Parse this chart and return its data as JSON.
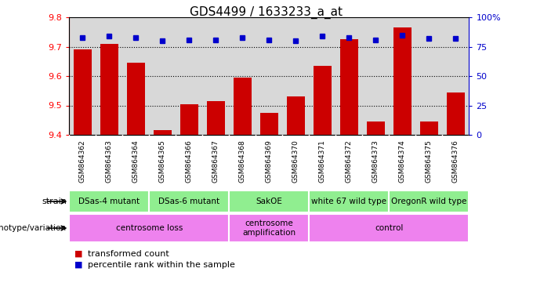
{
  "title": "GDS4499 / 1633233_a_at",
  "samples": [
    "GSM864362",
    "GSM864363",
    "GSM864364",
    "GSM864365",
    "GSM864366",
    "GSM864367",
    "GSM864368",
    "GSM864369",
    "GSM864370",
    "GSM864371",
    "GSM864372",
    "GSM864373",
    "GSM864374",
    "GSM864375",
    "GSM864376"
  ],
  "bar_values": [
    9.69,
    9.71,
    9.645,
    9.415,
    9.505,
    9.515,
    9.595,
    9.475,
    9.53,
    9.635,
    9.725,
    9.445,
    9.765,
    9.445,
    9.545
  ],
  "percentile_values": [
    83,
    84,
    83,
    80,
    81,
    81,
    83,
    81,
    80,
    84,
    83,
    81,
    85,
    82,
    82
  ],
  "ylim_left": [
    9.4,
    9.8
  ],
  "ylim_right": [
    0,
    100
  ],
  "yticks_left": [
    9.4,
    9.5,
    9.6,
    9.7,
    9.8
  ],
  "yticks_right": [
    0,
    25,
    50,
    75,
    100
  ],
  "bar_color": "#cc0000",
  "dot_color": "#0000cc",
  "strain_groups": [
    {
      "label": "DSas-4 mutant",
      "start": 0,
      "end": 3
    },
    {
      "label": "DSas-6 mutant",
      "start": 3,
      "end": 6
    },
    {
      "label": "SakOE",
      "start": 6,
      "end": 9
    },
    {
      "label": "white 67 wild type",
      "start": 9,
      "end": 12
    },
    {
      "label": "OregonR wild type",
      "start": 12,
      "end": 15
    }
  ],
  "genotype_groups": [
    {
      "label": "centrosome loss",
      "start": 0,
      "end": 6
    },
    {
      "label": "centrosome\namplification",
      "start": 6,
      "end": 9
    },
    {
      "label": "control",
      "start": 9,
      "end": 15
    }
  ],
  "strain_color": "#90ee90",
  "geno_color": "#ee82ee",
  "xtick_bg": "#d3d3d3",
  "legend_items": [
    {
      "label": "transformed count",
      "color": "#cc0000"
    },
    {
      "label": "percentile rank within the sample",
      "color": "#0000cc"
    }
  ],
  "plot_bg": "#d8d8d8"
}
